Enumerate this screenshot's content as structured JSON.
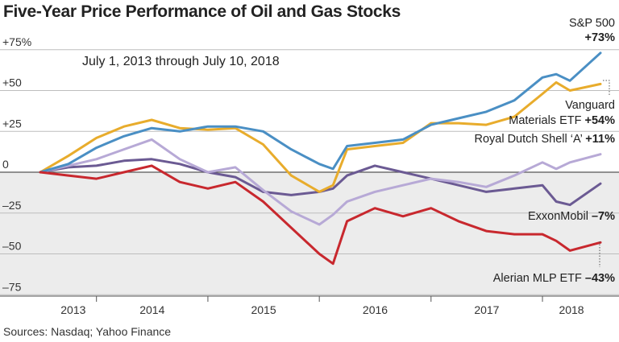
{
  "title": "Five-Year Price Performance of Oil and Gas Stocks",
  "subtitle": "July 1, 2013 through July 10, 2018",
  "source": "Sources: Nasdaq; Yahoo Finance",
  "chart_data": {
    "type": "line",
    "title": "Five-Year Price Performance of Oil and Gas Stocks",
    "subtitle": "July 1, 2013 through July 10, 2018",
    "xlabel": "",
    "ylabel": "",
    "xlim": [
      "2013-07-01",
      "2018-07-10"
    ],
    "ylim": [
      -85,
      85
    ],
    "yticks": [
      75,
      50,
      25,
      0,
      -25,
      -50,
      -75
    ],
    "ytick_labels": [
      "+75%",
      "+50",
      "+25",
      "0",
      "–25",
      "–50",
      "–75"
    ],
    "xtick_labels": [
      "2013",
      "2014",
      "2015",
      "2016",
      "2017",
      "2018"
    ],
    "x_dates": [
      "2013-07-01",
      "2013-10-01",
      "2014-01-01",
      "2014-04-01",
      "2014-07-01",
      "2014-10-01",
      "2015-01-01",
      "2015-04-01",
      "2015-07-01",
      "2015-10-01",
      "2016-01-01",
      "2016-02-15",
      "2016-04-01",
      "2016-07-01",
      "2016-10-01",
      "2017-01-01",
      "2017-04-01",
      "2017-07-01",
      "2017-10-01",
      "2018-01-01",
      "2018-02-15",
      "2018-04-01",
      "2018-07-10"
    ],
    "grid": "horizontal",
    "shaded_below_zero": true,
    "series": [
      {
        "name": "S&P 500",
        "end_label": "+73%",
        "color": "#4a8fc4",
        "values": [
          0,
          5,
          15,
          22,
          27,
          25,
          28,
          28,
          25,
          14,
          5,
          2,
          16,
          18,
          20,
          29,
          33,
          37,
          44,
          58,
          60,
          56,
          73
        ]
      },
      {
        "name": "Vanguard Materials ETF",
        "end_label": "+54%",
        "color": "#e8ac2c",
        "values": [
          0,
          10,
          21,
          28,
          32,
          27,
          26,
          27,
          17,
          -2,
          -12,
          -8,
          14,
          16,
          18,
          30,
          30,
          29,
          34,
          48,
          55,
          50,
          54
        ]
      },
      {
        "name": "Royal Dutch Shell ‘A’",
        "end_label": "+11%",
        "color": "#b7a9d6",
        "values": [
          0,
          4,
          8,
          14,
          20,
          8,
          0,
          3,
          -11,
          -24,
          -32,
          -26,
          -18,
          -12,
          -8,
          -4,
          -6,
          -9,
          -2,
          6,
          2,
          6,
          11
        ]
      },
      {
        "name": "ExxonMobil",
        "end_label": "–7%",
        "color": "#6b5a93",
        "values": [
          0,
          3,
          4,
          7,
          8,
          5,
          0,
          -3,
          -12,
          -14,
          -12,
          -10,
          -2,
          4,
          0,
          -4,
          -8,
          -12,
          -10,
          -8,
          -18,
          -20,
          -7
        ]
      },
      {
        "name": "Alerian MLP ETF",
        "end_label": "–43%",
        "color": "#c8282e",
        "values": [
          0,
          -2,
          -4,
          0,
          4,
          -6,
          -10,
          -6,
          -18,
          -34,
          -50,
          -56,
          -30,
          -22,
          -27,
          -22,
          -30,
          -36,
          -38,
          -38,
          -42,
          -48,
          -43
        ]
      }
    ]
  }
}
